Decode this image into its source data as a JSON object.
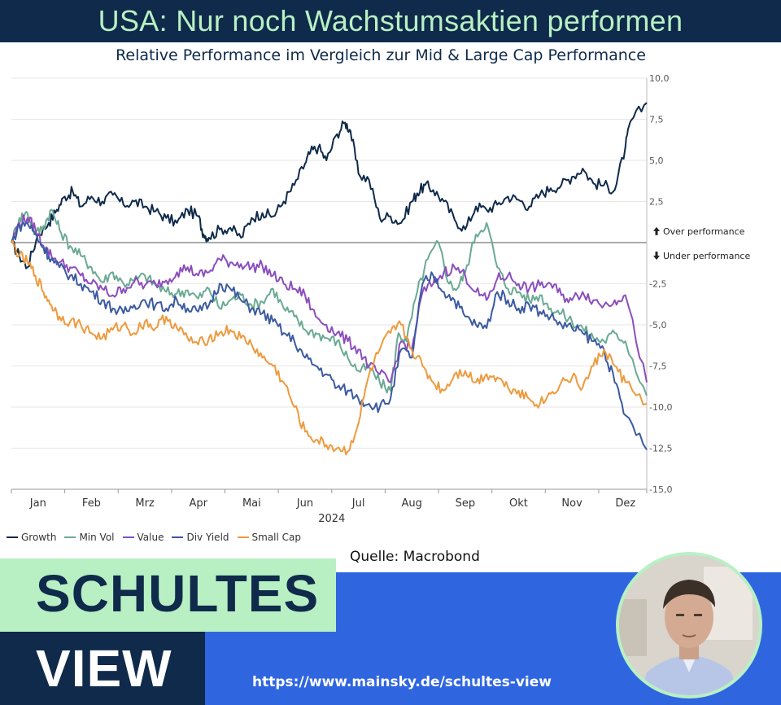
{
  "header": {
    "title": "USA: Nur noch Wachstumsaktien performen",
    "subtitle": "Relative Performance im Vergleich zur Mid & Large Cap Performance"
  },
  "chart_data": {
    "type": "line",
    "title": "Relative Performance im Vergleich zur Mid & Large Cap Performance",
    "xlabel": "2024",
    "ylabel": "",
    "ylim": [
      -15,
      10
    ],
    "xlim": [
      0,
      11.9
    ],
    "x_tick_labels": [
      "Jan",
      "Feb",
      "Mrz",
      "Apr",
      "Mai",
      "Jun",
      "Jul",
      "Aug",
      "Sep",
      "Okt",
      "Nov",
      "Dez"
    ],
    "x_tick_positions": [
      0.5,
      1.5,
      2.5,
      3.5,
      4.5,
      5.5,
      6.5,
      7.5,
      8.5,
      9.5,
      10.5,
      11.5
    ],
    "y_ticks": [
      10,
      7.5,
      5,
      2.5,
      -2.5,
      -5,
      -7.5,
      -10,
      -12.5,
      -15
    ],
    "y_tick_labels": [
      "10,0",
      "7,5",
      "5,0",
      "2,5",
      "-2,5",
      "-5,0",
      "-7,5",
      "-10,0",
      "-12,5",
      "-15,0"
    ],
    "annotations": [
      {
        "text": "Over performance",
        "arrow": "up",
        "y": 0.7
      },
      {
        "text": "Under performance",
        "arrow": "down",
        "y": -0.8
      }
    ],
    "series": [
      {
        "name": "Growth",
        "color": "#0f2a4a",
        "x": [
          0,
          0.15,
          0.3,
          0.5,
          0.7,
          0.85,
          1.0,
          1.15,
          1.3,
          1.5,
          1.7,
          1.9,
          2.1,
          2.3,
          2.5,
          2.7,
          2.9,
          3.1,
          3.3,
          3.5,
          3.6,
          3.7,
          3.9,
          4.1,
          4.3,
          4.5,
          4.7,
          4.9,
          5.1,
          5.3,
          5.5,
          5.6,
          5.75,
          5.9,
          6.1,
          6.25,
          6.35,
          6.5,
          6.7,
          6.9,
          7.1,
          7.3,
          7.5,
          7.6,
          7.75,
          7.9,
          8.1,
          8.3,
          8.5,
          8.7,
          8.9,
          9.1,
          9.3,
          9.5,
          9.7,
          9.9,
          10.1,
          10.3,
          10.5,
          10.7,
          10.9,
          11.1,
          11.3,
          11.5,
          11.6
        ],
        "values": [
          0,
          -0.8,
          -1.5,
          0.5,
          1.2,
          2.0,
          2.8,
          3.1,
          2.2,
          2.8,
          2.5,
          2.9,
          2.3,
          2.5,
          2.2,
          1.9,
          1.5,
          1.2,
          2.0,
          1.6,
          0.5,
          0.3,
          0.8,
          0.9,
          0.3,
          1.5,
          1.8,
          1.6,
          2.5,
          3.5,
          4.8,
          5.5,
          5.8,
          5.0,
          6.6,
          7.3,
          6.8,
          4.2,
          3.8,
          1.5,
          1.6,
          1.2,
          2.5,
          3.0,
          3.5,
          3.2,
          2.5,
          1.4,
          0.8,
          2.2,
          2.0,
          2.3,
          2.8,
          2.6,
          2.2,
          2.9,
          3.3,
          3.5,
          4.0,
          4.5,
          3.6,
          3.5,
          3.2,
          5.8,
          7.4
        ],
        "end_value": 8.5
      },
      {
        "name": "Min Vol",
        "color": "#6aaa92",
        "x": [
          0,
          0.15,
          0.3,
          0.45,
          0.6,
          0.75,
          0.9,
          1.1,
          1.3,
          1.5,
          1.7,
          1.9,
          2.1,
          2.3,
          2.5,
          2.7,
          2.9,
          3.1,
          3.3,
          3.5,
          3.7,
          3.9,
          4.1,
          4.3,
          4.5,
          4.7,
          4.9,
          5.1,
          5.3,
          5.5,
          5.7,
          5.9,
          6.1,
          6.3,
          6.5,
          6.7,
          6.9,
          7.1,
          7.25,
          7.4,
          7.6,
          7.8,
          8.0,
          8.2,
          8.35,
          8.5,
          8.7,
          8.9,
          9.1,
          9.3,
          9.5,
          9.7,
          9.9,
          10.1,
          10.3,
          10.5,
          10.7,
          10.9,
          11.1,
          11.3,
          11.5
        ],
        "values": [
          0,
          1.5,
          1.8,
          0.5,
          1.0,
          2.0,
          0.8,
          -0.2,
          -0.8,
          -1.5,
          -2.4,
          -1.8,
          -2.5,
          -2.3,
          -2.0,
          -2.6,
          -3.0,
          -3.1,
          -2.9,
          -3.4,
          -2.8,
          -4.0,
          -3.5,
          -3.2,
          -3.8,
          -3.6,
          -2.8,
          -4.0,
          -4.5,
          -5.3,
          -5.5,
          -5.8,
          -6.0,
          -7.0,
          -7.8,
          -7.6,
          -8.5,
          -9.0,
          -5.5,
          -6.0,
          -3.0,
          -1.0,
          0.0,
          -2.5,
          -2.8,
          -1.8,
          0.5,
          1.2,
          -1.5,
          -2.8,
          -3.0,
          -3.5,
          -3.2,
          -4.0,
          -4.3,
          -4.8,
          -5.2,
          -5.8,
          -6.0,
          -5.5,
          -6.0
        ],
        "end_value": -9.3
      },
      {
        "name": "Value",
        "color": "#8b4dbd",
        "x": [
          0,
          0.15,
          0.3,
          0.45,
          0.6,
          0.75,
          0.9,
          1.1,
          1.3,
          1.5,
          1.7,
          1.9,
          2.1,
          2.3,
          2.5,
          2.7,
          2.9,
          3.1,
          3.3,
          3.5,
          3.7,
          3.9,
          4.1,
          4.3,
          4.5,
          4.7,
          4.9,
          5.1,
          5.3,
          5.5,
          5.7,
          5.9,
          6.1,
          6.3,
          6.5,
          6.7,
          6.9,
          7.1,
          7.3,
          7.5,
          7.7,
          7.9,
          8.1,
          8.3,
          8.5,
          8.7,
          8.9,
          9.1,
          9.3,
          9.5,
          9.7,
          9.9,
          10.1,
          10.3,
          10.5,
          10.7,
          10.9,
          11.1,
          11.3,
          11.5
        ],
        "values": [
          0,
          1.2,
          1.5,
          0.8,
          -0.2,
          -0.8,
          -1.2,
          -1.5,
          -2.0,
          -2.5,
          -2.8,
          -3.2,
          -2.8,
          -2.4,
          -2.6,
          -2.5,
          -2.3,
          -1.8,
          -1.5,
          -2.0,
          -1.8,
          -1.0,
          -1.2,
          -1.3,
          -1.5,
          -1.4,
          -2.0,
          -2.5,
          -2.8,
          -3.2,
          -4.5,
          -5.0,
          -5.5,
          -6.0,
          -6.5,
          -7.5,
          -8.0,
          -8.5,
          -6.0,
          -6.5,
          -3.0,
          -2.5,
          -1.8,
          -1.5,
          -2.0,
          -3.0,
          -3.5,
          -2.2,
          -2.0,
          -2.5,
          -2.8,
          -2.6,
          -2.5,
          -3.2,
          -3.5,
          -3.0,
          -3.5,
          -3.8,
          -3.5,
          -3.2
        ],
        "end_value": -8.5
      },
      {
        "name": "Div Yield",
        "color": "#3b5aa0",
        "x": [
          0,
          0.15,
          0.3,
          0.45,
          0.6,
          0.75,
          0.9,
          1.1,
          1.3,
          1.5,
          1.7,
          1.9,
          2.1,
          2.3,
          2.5,
          2.7,
          2.9,
          3.1,
          3.3,
          3.5,
          3.7,
          3.9,
          4.1,
          4.3,
          4.5,
          4.7,
          4.9,
          5.1,
          5.3,
          5.5,
          5.7,
          5.9,
          6.1,
          6.3,
          6.5,
          6.7,
          6.9,
          7.1,
          7.3,
          7.5,
          7.7,
          7.9,
          8.1,
          8.3,
          8.5,
          8.7,
          8.9,
          9.1,
          9.3,
          9.5,
          9.7,
          9.9,
          10.1,
          10.3,
          10.5,
          10.7,
          10.9,
          11.1,
          11.3,
          11.5
        ],
        "values": [
          0,
          1.0,
          1.2,
          0.5,
          -0.3,
          -1.0,
          -1.5,
          -2.0,
          -2.5,
          -3.0,
          -3.5,
          -4.0,
          -4.3,
          -3.8,
          -3.5,
          -3.8,
          -4.0,
          -3.5,
          -4.0,
          -4.2,
          -3.8,
          -2.5,
          -2.8,
          -3.5,
          -4.0,
          -4.3,
          -4.8,
          -5.5,
          -6.0,
          -7.0,
          -7.5,
          -8.0,
          -8.8,
          -9.0,
          -9.5,
          -9.8,
          -10.0,
          -9.5,
          -6.5,
          -7.0,
          -2.5,
          -2.0,
          -3.0,
          -3.5,
          -4.5,
          -5.0,
          -5.2,
          -3.0,
          -3.5,
          -4.0,
          -3.8,
          -4.2,
          -4.5,
          -5.0,
          -5.2,
          -5.5,
          -6.0,
          -6.5,
          -8.5,
          -10.5
        ],
        "end_value": -12.6
      },
      {
        "name": "Small Cap",
        "color": "#ee9a3e",
        "x": [
          0,
          0.15,
          0.3,
          0.45,
          0.6,
          0.75,
          0.9,
          1.1,
          1.3,
          1.5,
          1.7,
          1.9,
          2.1,
          2.3,
          2.5,
          2.7,
          2.9,
          3.1,
          3.3,
          3.5,
          3.7,
          3.9,
          4.1,
          4.3,
          4.5,
          4.7,
          4.9,
          5.1,
          5.3,
          5.5,
          5.7,
          5.9,
          6.1,
          6.3,
          6.5,
          6.7,
          6.9,
          7.1,
          7.3,
          7.5,
          7.7,
          7.9,
          8.1,
          8.3,
          8.5,
          8.7,
          8.9,
          9.1,
          9.3,
          9.5,
          9.7,
          9.9,
          10.1,
          10.3,
          10.5,
          10.7,
          10.9,
          11.1,
          11.3,
          11.5
        ],
        "values": [
          0,
          -0.8,
          -1.2,
          -2.0,
          -3.0,
          -3.8,
          -4.5,
          -4.8,
          -5.0,
          -5.5,
          -5.8,
          -5.3,
          -5.0,
          -5.5,
          -4.8,
          -5.2,
          -4.5,
          -5.2,
          -5.8,
          -6.2,
          -5.8,
          -5.5,
          -5.3,
          -5.8,
          -6.2,
          -7.0,
          -7.5,
          -8.5,
          -10.0,
          -11.5,
          -12.0,
          -12.3,
          -12.5,
          -12.7,
          -11.0,
          -8.0,
          -6.5,
          -5.5,
          -5.0,
          -6.5,
          -7.5,
          -8.5,
          -9.0,
          -8.0,
          -7.8,
          -8.5,
          -8.0,
          -8.2,
          -8.8,
          -9.0,
          -9.5,
          -9.8,
          -9.2,
          -8.5,
          -8.2,
          -8.8,
          -7.5,
          -6.5,
          -7.5,
          -8.5
        ],
        "end_value": -9.8
      }
    ]
  },
  "source": "Quelle: Macrobond",
  "brand": {
    "line1": "SCHULTES",
    "line2": "VIEW",
    "url": "https://www.mainsky.de/schultes-view"
  },
  "colors": {
    "navy": "#0f2a4a",
    "mint": "#b8f0c4",
    "blue": "#2f66e0"
  }
}
